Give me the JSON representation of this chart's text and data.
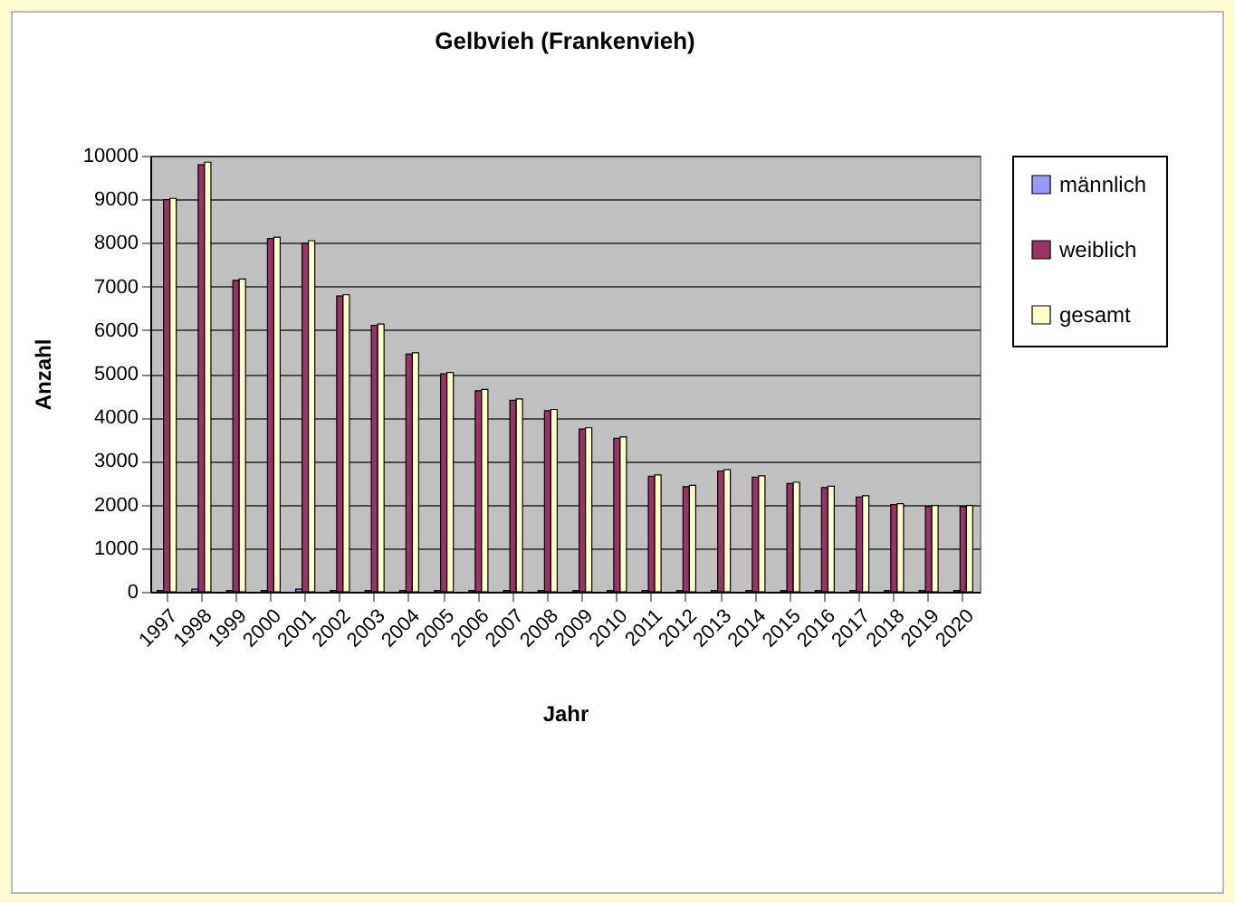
{
  "chart_data": {
    "type": "bar",
    "title": "Gelbvieh (Frankenvieh)",
    "xlabel": "Jahr",
    "ylabel": "Anzahl",
    "categories": [
      "1997",
      "1998",
      "1999",
      "2000",
      "2001",
      "2002",
      "2003",
      "2004",
      "2005",
      "2006",
      "2007",
      "2008",
      "2009",
      "2010",
      "2011",
      "2012",
      "2013",
      "2014",
      "2015",
      "2016",
      "2017",
      "2018",
      "2019",
      "2020"
    ],
    "series": [
      {
        "name": "männlich",
        "color": "#9999ff",
        "values": [
          30,
          60,
          30,
          30,
          60,
          30,
          30,
          30,
          30,
          30,
          30,
          30,
          30,
          30,
          30,
          30,
          30,
          30,
          30,
          30,
          30,
          30,
          30,
          30
        ]
      },
      {
        "name": "weiblich",
        "color": "#993366",
        "values": [
          8990,
          9790,
          7140,
          8100,
          7990,
          6780,
          6110,
          5450,
          5000,
          4610,
          4390,
          4150,
          3730,
          3520,
          2650,
          2410,
          2770,
          2630,
          2480,
          2390,
          2170,
          2000,
          1960,
          1960
        ]
      },
      {
        "name": "gesamt",
        "color": "#ffffcc",
        "values": [
          9020,
          9850,
          7170,
          8130,
          8050,
          6810,
          6140,
          5480,
          5030,
          4640,
          4420,
          4180,
          3760,
          3550,
          2680,
          2440,
          2800,
          2660,
          2510,
          2420,
          2200,
          2020,
          1980,
          1980
        ]
      }
    ],
    "ylim": [
      0,
      10000
    ],
    "yticks": [
      0,
      1000,
      2000,
      3000,
      4000,
      5000,
      6000,
      7000,
      8000,
      9000,
      10000
    ],
    "grid": "y",
    "legend": "right"
  }
}
